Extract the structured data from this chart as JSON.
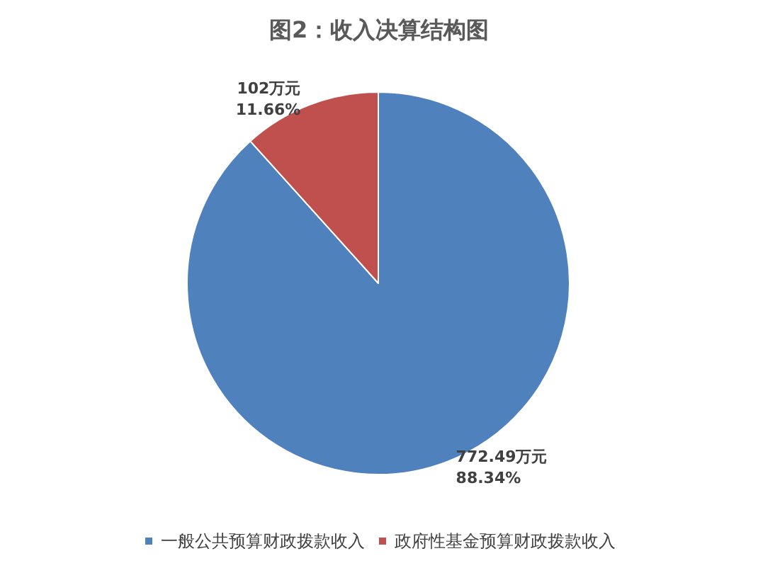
{
  "chart_data": {
    "type": "pie",
    "title": "图2：收入决算结构图",
    "categories": [
      "一般公共预算财政拨款收入",
      "政府性基金预算财政拨款收入"
    ],
    "values": [
      772.49,
      102
    ],
    "colors": [
      "#4f81bd",
      "#c0504d"
    ],
    "value_labels": [
      "772.49万元\n88.34%",
      "102万元\n11.66%"
    ],
    "legend": "bottom"
  }
}
